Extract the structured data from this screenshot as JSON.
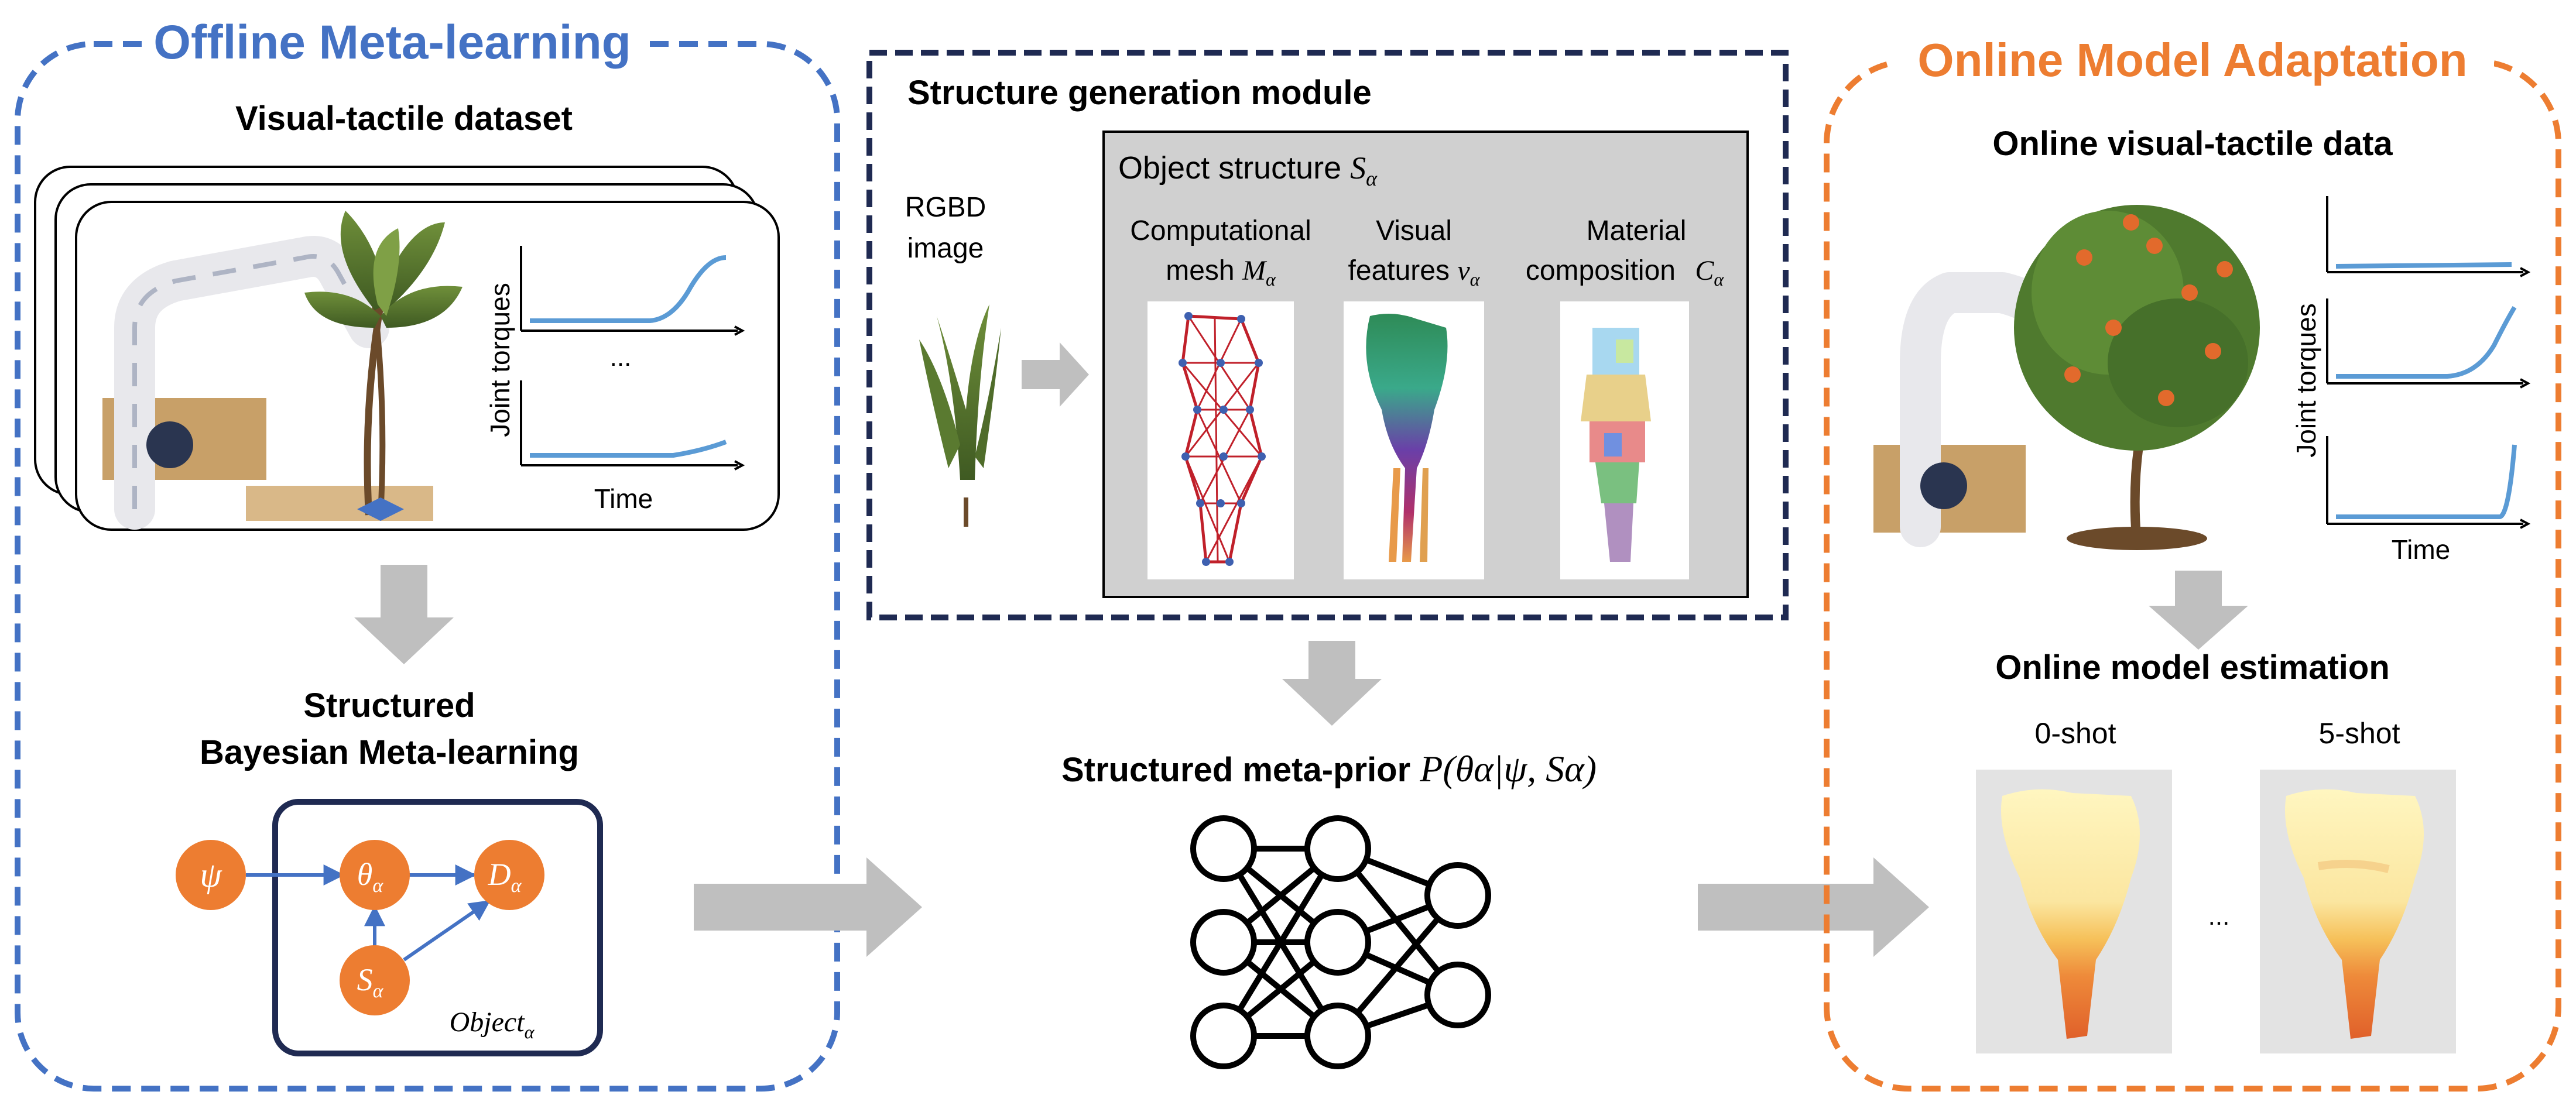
{
  "panels": {
    "offline": {
      "title": "Offline Meta-learning",
      "dataset_title": "Visual-tactile dataset",
      "plot_ylabel": "Joint torques",
      "plot_xlabel": "Time",
      "plot_ellipsis": "...",
      "method_line1": "Structured",
      "method_line2": "Bayesian Meta-learning",
      "nodes": {
        "psi": "ψ",
        "theta": "θ",
        "theta_sub": "α",
        "d": "D",
        "d_sub": "α",
        "s": "S",
        "s_sub": "α"
      },
      "plate_label": "Object",
      "plate_sub": "α"
    },
    "structure": {
      "title": "Structure generation module",
      "input_line1": "RGBD",
      "input_line2": "image",
      "object_structure": "Object structure ",
      "object_structure_sym": "S",
      "object_structure_sub": "α",
      "mesh_line1": "Computational",
      "mesh_line2": "mesh ",
      "mesh_sym": "M",
      "mesh_sub": "α",
      "features_line1": "Visual",
      "features_line2": "features ",
      "features_sym": "v",
      "features_sub": "α",
      "material_line1": "Material",
      "material_line2": "composition ",
      "material_sym": "C",
      "material_sub": "α"
    },
    "prior": {
      "label": "Structured meta-prior ",
      "formula": "P(θα|ψ, Sα)"
    },
    "online": {
      "title": "Online Model Adaptation",
      "data_title": "Online visual-tactile data",
      "plot_ylabel": "Joint torques",
      "plot_xlabel": "Time",
      "estimation_title": "Online model estimation",
      "shot0": "0-shot",
      "shot5": "5-shot",
      "ellipsis": "..."
    }
  },
  "colors": {
    "offline_blue": "#4472C4",
    "online_orange": "#ED7D31",
    "navy": "#1F2A52",
    "node_orange": "#ED7D31",
    "arrow_gray": "#BFBFBF",
    "plot_line": "#5B9BD5",
    "structure_bg": "#D0D0D0"
  }
}
